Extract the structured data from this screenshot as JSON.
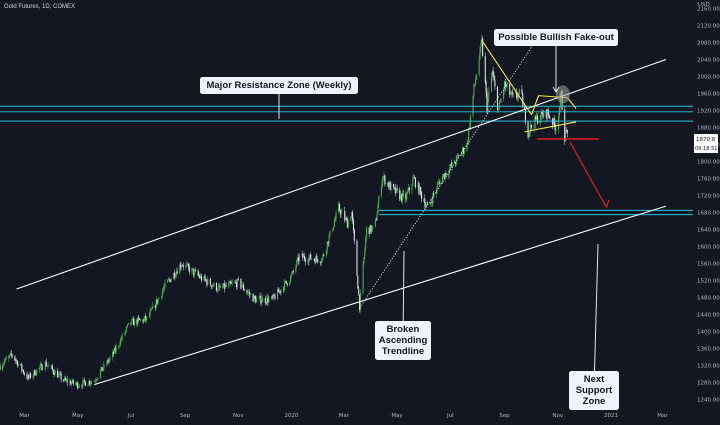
{
  "header": {
    "title": "Gold Futures, 1D, COMEX"
  },
  "currency_badge": "USD",
  "price_badge": {
    "price": "1870.8",
    "countdown": "09:18:51",
    "bg_color": "#ffffff"
  },
  "colors": {
    "background": "#131722",
    "candle_up": "#4caf50",
    "candle_down": "#e0e3eb",
    "resistance_line": "#26c6da",
    "channel": "#ffffff",
    "triangle": "#ffeb3b",
    "target": "#ff1f1f",
    "ellipse": "#9e9e9e"
  },
  "annotations": [
    {
      "id": "major-resistance-label",
      "lines": [
        "Major Resistance Zone (Weekly)"
      ]
    },
    {
      "id": "fakeout-label",
      "lines": [
        "Possible Bullish Fake-out"
      ]
    },
    {
      "id": "broken-trendline-label",
      "lines": [
        "Broken",
        "Ascending",
        "Trendline"
      ]
    },
    {
      "id": "next-support-label",
      "lines": [
        "Next",
        "Support",
        "Zone"
      ]
    }
  ],
  "chart_data": {
    "type": "candlestick",
    "title": "Gold Futures, 1D, COMEX",
    "ylim": [
      1220,
      2180
    ],
    "x_tick_labels": [
      "Mar",
      "May",
      "Jul",
      "Sep",
      "Nov",
      "2020",
      "Mar",
      "May",
      "Jul",
      "Sep",
      "Nov",
      "2021",
      "Mar"
    ],
    "y_tick_labels": [
      1240,
      1280,
      1320,
      1360,
      1400,
      1440,
      1480,
      1520,
      1560,
      1600,
      1640,
      1680,
      1720,
      1760,
      1800,
      1840,
      1880,
      1920,
      1960,
      2000,
      2040,
      2080,
      2120,
      2160
    ],
    "price_path": [
      {
        "date": "2019-02-01",
        "price": 1320
      },
      {
        "date": "2019-02-15",
        "price": 1345
      },
      {
        "date": "2019-03-05",
        "price": 1290
      },
      {
        "date": "2019-03-25",
        "price": 1325
      },
      {
        "date": "2019-04-15",
        "price": 1285
      },
      {
        "date": "2019-05-01",
        "price": 1275
      },
      {
        "date": "2019-05-20",
        "price": 1285
      },
      {
        "date": "2019-06-10",
        "price": 1345
      },
      {
        "date": "2019-06-30",
        "price": 1420
      },
      {
        "date": "2019-07-20",
        "price": 1430
      },
      {
        "date": "2019-08-10",
        "price": 1510
      },
      {
        "date": "2019-08-28",
        "price": 1560
      },
      {
        "date": "2019-09-20",
        "price": 1525
      },
      {
        "date": "2019-10-10",
        "price": 1500
      },
      {
        "date": "2019-11-01",
        "price": 1515
      },
      {
        "date": "2019-11-20",
        "price": 1475
      },
      {
        "date": "2019-12-10",
        "price": 1475
      },
      {
        "date": "2020-01-01",
        "price": 1530
      },
      {
        "date": "2020-01-10",
        "price": 1575
      },
      {
        "date": "2020-02-05",
        "price": 1570
      },
      {
        "date": "2020-02-24",
        "price": 1690
      },
      {
        "date": "2020-03-05",
        "price": 1655
      },
      {
        "date": "2020-03-10",
        "price": 1680
      },
      {
        "date": "2020-03-19",
        "price": 1460
      },
      {
        "date": "2020-03-27",
        "price": 1640
      },
      {
        "date": "2020-04-05",
        "price": 1640
      },
      {
        "date": "2020-04-14",
        "price": 1765
      },
      {
        "date": "2020-04-25",
        "price": 1735
      },
      {
        "date": "2020-05-10",
        "price": 1710
      },
      {
        "date": "2020-05-20",
        "price": 1760
      },
      {
        "date": "2020-06-05",
        "price": 1690
      },
      {
        "date": "2020-06-20",
        "price": 1760
      },
      {
        "date": "2020-07-05",
        "price": 1795
      },
      {
        "date": "2020-07-20",
        "price": 1840
      },
      {
        "date": "2020-07-28",
        "price": 1970
      },
      {
        "date": "2020-08-06",
        "price": 2080
      },
      {
        "date": "2020-08-12",
        "price": 1930
      },
      {
        "date": "2020-08-18",
        "price": 2010
      },
      {
        "date": "2020-08-25",
        "price": 1920
      },
      {
        "date": "2020-09-01",
        "price": 1980
      },
      {
        "date": "2020-09-10",
        "price": 1950
      },
      {
        "date": "2020-09-20",
        "price": 1960
      },
      {
        "date": "2020-09-28",
        "price": 1870
      },
      {
        "date": "2020-10-08",
        "price": 1900
      },
      {
        "date": "2020-10-20",
        "price": 1915
      },
      {
        "date": "2020-10-30",
        "price": 1880
      },
      {
        "date": "2020-11-05",
        "price": 1955
      },
      {
        "date": "2020-11-09",
        "price": 1860
      },
      {
        "date": "2020-11-12",
        "price": 1875
      }
    ],
    "resistance_zone": [
      1895,
      1930
    ],
    "support_zone": [
      1675,
      1685
    ],
    "last_price": 1870.8
  }
}
